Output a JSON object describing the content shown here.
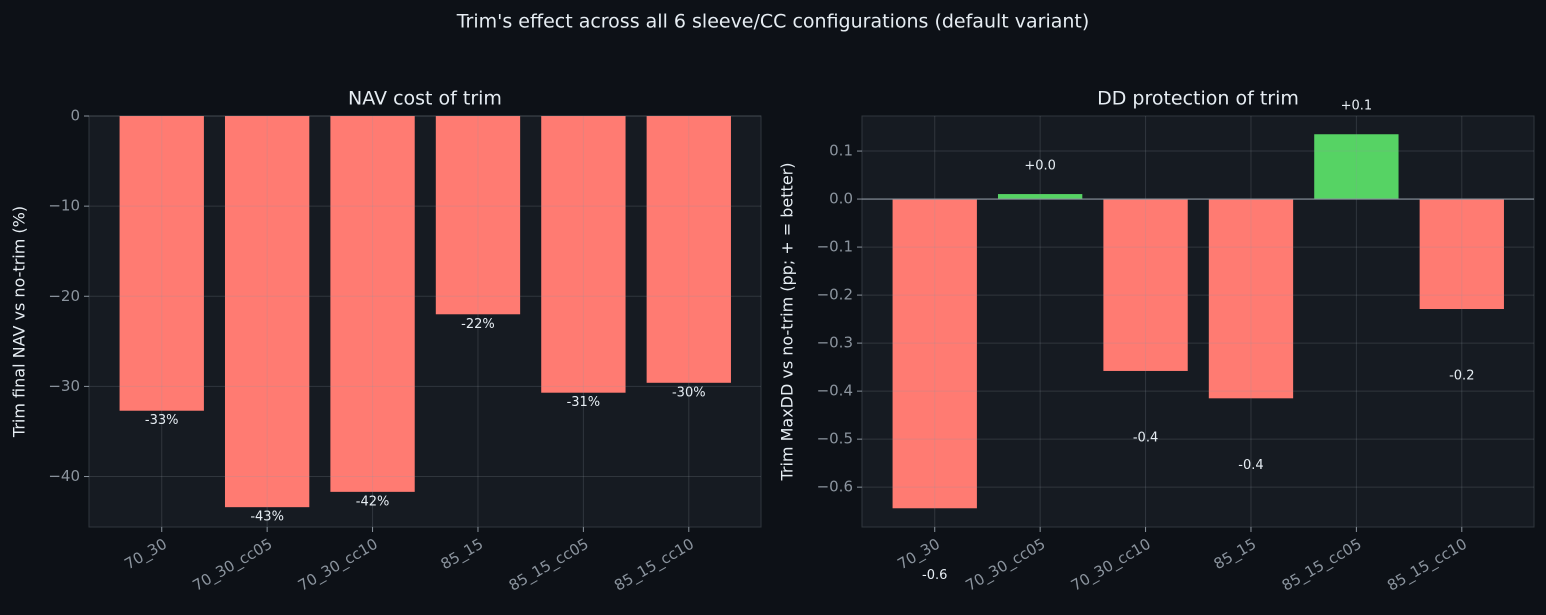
{
  "title": "Trim's effect across all 6 sleeve/CC configurations (default variant)",
  "chart_data": [
    {
      "type": "bar",
      "title": "NAV cost of trim",
      "y_label": "Trim final NAV vs no-trim (%)",
      "categories": [
        "70_30",
        "70_30_cc05",
        "70_30_cc10",
        "85_15",
        "85_15_cc05",
        "85_15_cc10"
      ],
      "values": [
        -32.7,
        -43.4,
        -41.7,
        -22.0,
        -30.7,
        -29.6
      ],
      "value_labels": [
        "-33%",
        "-43%",
        "-42%",
        "-22%",
        "-31%",
        "-30%"
      ],
      "color": "#ff7b72",
      "ylim": [
        -45.6,
        0
      ],
      "yticks": [
        {
          "value": -40,
          "label": "−40"
        },
        {
          "value": -30,
          "label": "−30"
        },
        {
          "value": -20,
          "label": "−20"
        },
        {
          "value": -10,
          "label": "−10"
        },
        0
      ],
      "grid": true
    },
    {
      "type": "bar",
      "title": "DD protection of trim",
      "y_label": "Trim MaxDD vs no-trim (pp; + = better)",
      "categories": [
        "70_30",
        "70_30_cc05",
        "70_30_cc10",
        "85_15",
        "85_15_cc05",
        "85_15_cc10"
      ],
      "values": [
        -0.644,
        0.0104,
        -0.358,
        -0.415,
        0.135,
        -0.229
      ],
      "value_labels": [
        "-0.6",
        "+0.0",
        "-0.4",
        "-0.4",
        "+0.1",
        "-0.2"
      ],
      "color": "#ff7b72",
      "positive_color": "#56d364",
      "ylim": [
        -0.683,
        0.173
      ],
      "yticks": [
        {
          "value": -0.6,
          "label": "−0.6"
        },
        {
          "value": -0.5,
          "label": "−0.5"
        },
        {
          "value": -0.4,
          "label": "−0.4"
        },
        {
          "value": -0.3,
          "label": "−0.3"
        },
        {
          "value": -0.2,
          "label": "−0.2"
        },
        {
          "value": -0.1,
          "label": "−0.1"
        },
        {
          "value": 0,
          "label": "0.0"
        },
        0.1
      ],
      "grid": true,
      "zero_line": true
    }
  ]
}
